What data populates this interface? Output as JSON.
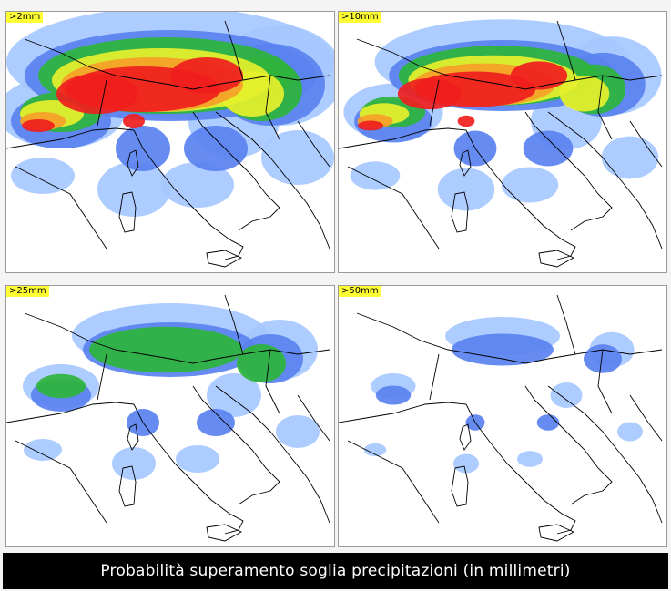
{
  "panels": [
    {
      "label": ">2mm",
      "level": 4
    },
    {
      "label": ">10mm",
      "level": 3
    },
    {
      "label": ">25mm",
      "level": 2
    },
    {
      "label": ">50mm",
      "level": 1
    }
  ],
  "colors": {
    "light_blue": "#a6c8ff",
    "blue": "#5a82f0",
    "green": "#2eb43c",
    "yellow": "#e6f02d",
    "orange": "#f5a028",
    "red": "#f01e1e",
    "label_bg": "#ffff33",
    "coastline": "#000000"
  },
  "caption": "Probabilità superamento soglia precipitazioni (in millimetri)"
}
